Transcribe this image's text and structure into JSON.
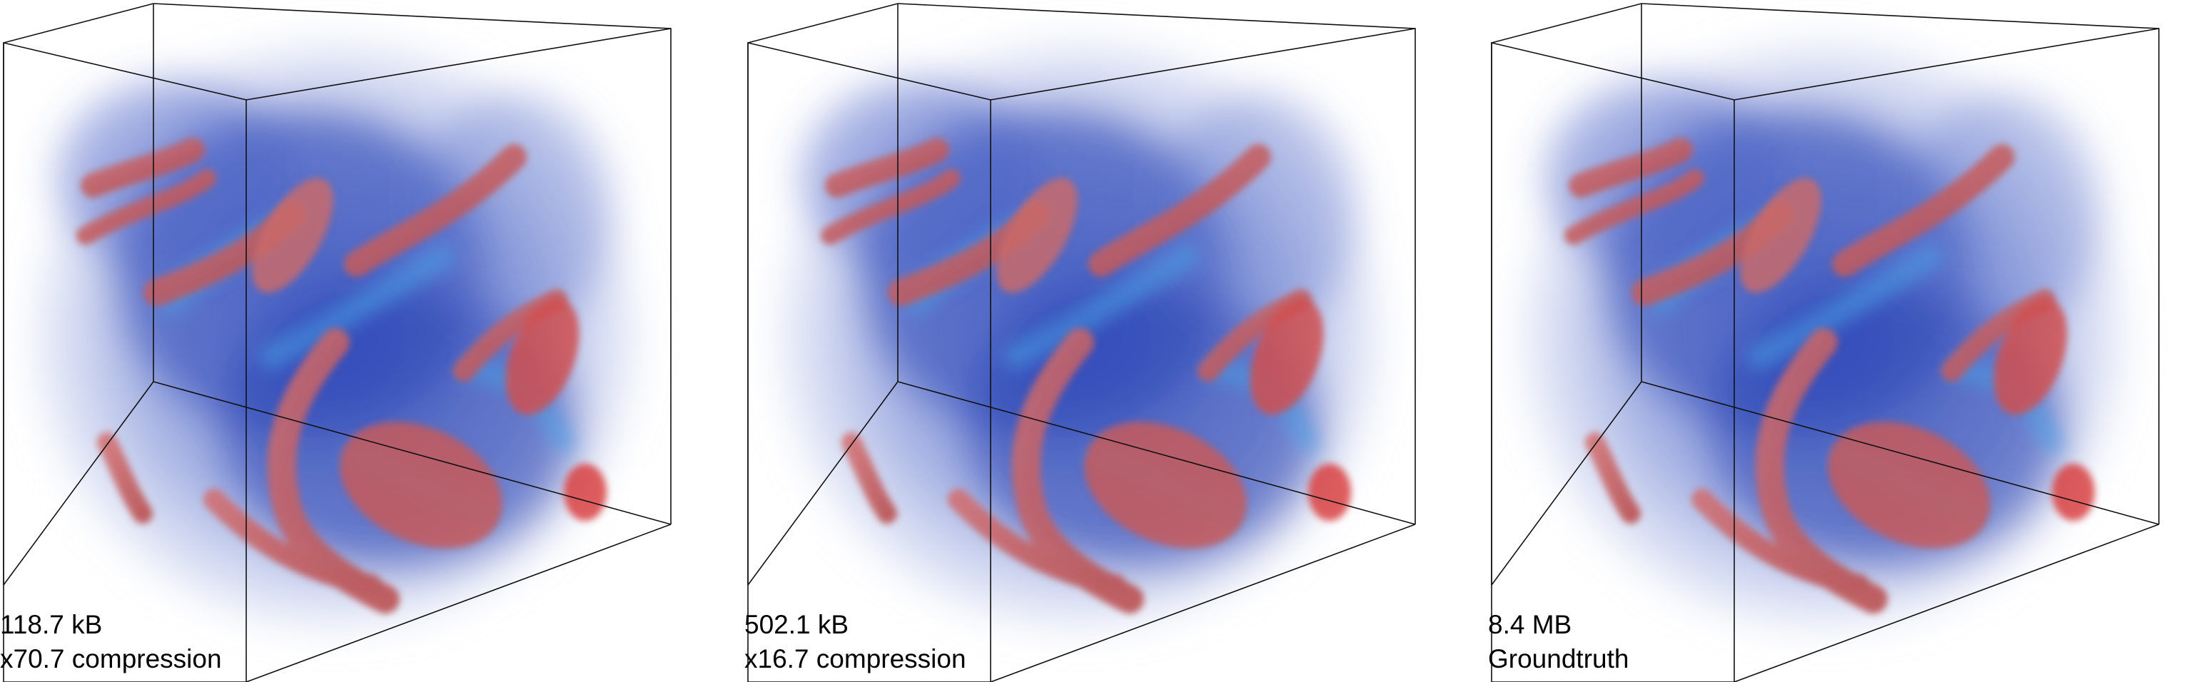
{
  "panels": [
    {
      "size": "118.7 kB",
      "label": "x70.7 compression"
    },
    {
      "size": "502.1 kB",
      "label": "x16.7 compression"
    },
    {
      "size": "8.4 MB",
      "label": "Groundtruth"
    }
  ],
  "colors": {
    "background": "#ffffff",
    "volume_blue": "#2f4fbf",
    "volume_red": "#c85a5a",
    "haze": "#e9edf7",
    "edge_line": "#111111"
  }
}
